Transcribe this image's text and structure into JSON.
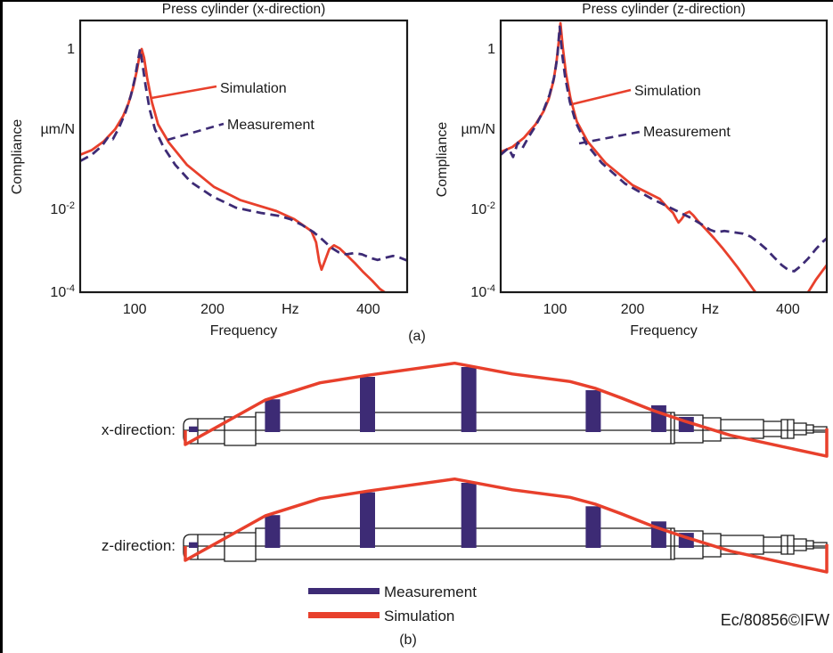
{
  "figure": {
    "panel_a_label": "(a)",
    "panel_b_label": "(b)",
    "watermark": "Ec/80856©IFW"
  },
  "colors": {
    "simulation": "#e8402c",
    "measurement": "#3d2b75",
    "axis": "#1a1a1a"
  },
  "chart_data": [
    {
      "type": "line",
      "title": "Press cylinder (x-direction)",
      "xlabel": "Frequency",
      "x_unit": "Hz",
      "ylabel": "Compliance",
      "y_unit": "µm/N",
      "x_scale": "linear",
      "y_scale": "log",
      "xlim": [
        30,
        450
      ],
      "ylim": [
        0.0001,
        2
      ],
      "x_ticks": [
        {
          "value": 100,
          "label": "100"
        },
        {
          "value": 200,
          "label": "200"
        },
        {
          "value": 300,
          "label": "Hz"
        },
        {
          "value": 400,
          "label": "400"
        }
      ],
      "y_ticks": [
        {
          "value": 1,
          "base": "1",
          "exp": ""
        },
        {
          "value": 0.1,
          "base": "µm/N",
          "exp": ""
        },
        {
          "value": 0.01,
          "base": "10",
          "exp": "-2"
        },
        {
          "value": 0.0001,
          "base": "10",
          "exp": "-4"
        }
      ],
      "series": [
        {
          "name": "Simulation",
          "style": "solid",
          "color_key": "simulation",
          "points": [
            [
              30,
              0.048
            ],
            [
              45,
              0.055
            ],
            [
              60,
              0.07
            ],
            [
              75,
              0.1
            ],
            [
              85,
              0.145
            ],
            [
              92,
              0.21
            ],
            [
              98,
              0.33
            ],
            [
              103,
              0.55
            ],
            [
              106,
              0.8
            ],
            [
              109,
              1.0
            ],
            [
              112,
              0.78
            ],
            [
              116,
              0.44
            ],
            [
              122,
              0.22
            ],
            [
              130,
              0.115
            ],
            [
              144,
              0.068
            ],
            [
              167,
              0.036
            ],
            [
              202,
              0.019
            ],
            [
              236,
              0.013
            ],
            [
              282,
              0.0091
            ],
            [
              305,
              0.0058
            ],
            [
              327,
              0.003
            ],
            [
              333,
              0.0016
            ],
            [
              337,
              0.00055
            ],
            [
              340,
              0.00035
            ],
            [
              344,
              0.00055
            ],
            [
              350,
              0.0011
            ],
            [
              356,
              0.00135
            ],
            [
              363,
              0.00115
            ],
            [
              372,
              0.0008
            ],
            [
              383,
              0.0005
            ],
            [
              394,
              0.0003
            ],
            [
              405,
              0.00019
            ],
            [
              415,
              0.00012
            ],
            [
              421,
              0.0001
            ]
          ]
        },
        {
          "name": "Measurement",
          "style": "dashed",
          "color_key": "measurement",
          "points": [
            [
              30,
              0.04
            ],
            [
              45,
              0.048
            ],
            [
              58,
              0.062
            ],
            [
              66,
              0.08
            ],
            [
              72,
              0.075
            ],
            [
              80,
              0.105
            ],
            [
              88,
              0.16
            ],
            [
              95,
              0.26
            ],
            [
              100,
              0.42
            ],
            [
              104,
              0.7
            ],
            [
              107,
              1.0
            ],
            [
              110,
              0.65
            ],
            [
              114,
              0.35
            ],
            [
              119,
              0.18
            ],
            [
              126,
              0.1
            ],
            [
              137,
              0.06
            ],
            [
              152,
              0.036
            ],
            [
              172,
              0.022
            ],
            [
              200,
              0.0145
            ],
            [
              230,
              0.0105
            ],
            [
              262,
              0.0082
            ],
            [
              285,
              0.007
            ],
            [
              300,
              0.0058
            ],
            [
              315,
              0.0042
            ],
            [
              330,
              0.0028
            ],
            [
              342,
              0.0018
            ],
            [
              352,
              0.0012
            ],
            [
              362,
              0.00092
            ],
            [
              372,
              0.00082
            ],
            [
              382,
              0.00088
            ],
            [
              392,
              0.00082
            ],
            [
              402,
              0.00068
            ],
            [
              412,
              0.0006
            ],
            [
              422,
              0.00068
            ],
            [
              432,
              0.00075
            ],
            [
              441,
              0.00068
            ],
            [
              450,
              0.00058
            ]
          ]
        }
      ]
    },
    {
      "type": "line",
      "title": "Press cylinder (z-direction)",
      "xlabel": "Frequency",
      "x_unit": "Hz",
      "ylabel": "Compliance",
      "y_unit": "µm/N",
      "x_scale": "linear",
      "y_scale": "log",
      "xlim": [
        30,
        450
      ],
      "ylim": [
        0.0001,
        2.2
      ],
      "x_ticks": [
        {
          "value": 100,
          "label": "100"
        },
        {
          "value": 200,
          "label": "200"
        },
        {
          "value": 300,
          "label": "Hz"
        },
        {
          "value": 400,
          "label": "400"
        }
      ],
      "y_ticks": [
        {
          "value": 1,
          "base": "1",
          "exp": ""
        },
        {
          "value": 0.1,
          "base": "µm/N",
          "exp": ""
        },
        {
          "value": 0.01,
          "base": "10",
          "exp": "-2"
        },
        {
          "value": 0.0001,
          "base": "10",
          "exp": "-4"
        }
      ],
      "series": [
        {
          "name": "Simulation",
          "style": "solid",
          "color_key": "simulation",
          "points": [
            [
              30,
              0.052
            ],
            [
              45,
              0.06
            ],
            [
              60,
              0.078
            ],
            [
              75,
              0.115
            ],
            [
              85,
              0.165
            ],
            [
              92,
              0.24
            ],
            [
              98,
              0.4
            ],
            [
              102,
              0.7
            ],
            [
              105,
              1.3
            ],
            [
              107,
              2.1
            ],
            [
              110,
              1.05
            ],
            [
              114,
              0.5
            ],
            [
              120,
              0.24
            ],
            [
              128,
              0.125
            ],
            [
              142,
              0.07
            ],
            [
              165,
              0.038
            ],
            [
              200,
              0.02
            ],
            [
              235,
              0.0135
            ],
            [
              245,
              0.0105
            ],
            [
              252,
              0.0082
            ],
            [
              256,
              0.006
            ],
            [
              259,
              0.0048
            ],
            [
              263,
              0.0058
            ],
            [
              268,
              0.008
            ],
            [
              273,
              0.0088
            ],
            [
              278,
              0.0072
            ],
            [
              285,
              0.005
            ],
            [
              295,
              0.0032
            ],
            [
              305,
              0.002
            ],
            [
              315,
              0.0012
            ],
            [
              325,
              0.0007
            ],
            [
              335,
              0.0004
            ],
            [
              345,
              0.00022
            ],
            [
              355,
              0.00012
            ],
            [
              362,
              8e-05
            ],
            [
              380,
              4e-05
            ],
            [
              395,
              4e-05
            ],
            [
              408,
              6e-05
            ],
            [
              418,
              9e-05
            ],
            [
              426,
              0.0001
            ],
            [
              436,
              0.0002
            ],
            [
              444,
              0.00032
            ],
            [
              450,
              0.00045
            ]
          ]
        },
        {
          "name": "Measurement",
          "style": "dashed",
          "color_key": "measurement",
          "points": [
            [
              30,
              0.048
            ],
            [
              40,
              0.058
            ],
            [
              46,
              0.045
            ],
            [
              52,
              0.068
            ],
            [
              58,
              0.058
            ],
            [
              66,
              0.08
            ],
            [
              75,
              0.11
            ],
            [
              85,
              0.17
            ],
            [
              93,
              0.27
            ],
            [
              99,
              0.45
            ],
            [
              103,
              0.8
            ],
            [
              106,
              1.9
            ],
            [
              109,
              0.9
            ],
            [
              113,
              0.45
            ],
            [
              119,
              0.22
            ],
            [
              127,
              0.12
            ],
            [
              140,
              0.066
            ],
            [
              160,
              0.038
            ],
            [
              190,
              0.021
            ],
            [
              225,
              0.0135
            ],
            [
              255,
              0.0095
            ],
            [
              275,
              0.0062
            ],
            [
              290,
              0.0042
            ],
            [
              300,
              0.0032
            ],
            [
              308,
              0.0028
            ],
            [
              318,
              0.003
            ],
            [
              330,
              0.0028
            ],
            [
              342,
              0.0026
            ],
            [
              352,
              0.0022
            ],
            [
              362,
              0.0016
            ],
            [
              372,
              0.0011
            ],
            [
              382,
              0.0007
            ],
            [
              392,
              0.00045
            ],
            [
              400,
              0.00035
            ],
            [
              408,
              0.00032
            ],
            [
              416,
              0.00042
            ],
            [
              426,
              0.00065
            ],
            [
              436,
              0.0011
            ],
            [
              444,
              0.0016
            ],
            [
              450,
              0.002
            ]
          ]
        }
      ]
    }
  ],
  "mode_shapes": {
    "rows": [
      {
        "label": "x-direction:",
        "bars": [
          {
            "pos": 0.0125,
            "amp": 0.06
          },
          {
            "pos": 0.136,
            "amp": 0.49
          },
          {
            "pos": 0.284,
            "amp": 0.845
          },
          {
            "pos": 0.442,
            "amp": 1.0
          },
          {
            "pos": 0.636,
            "amp": 0.634
          },
          {
            "pos": 0.738,
            "amp": 0.394
          },
          {
            "pos": 0.781,
            "amp": 0.211
          }
        ],
        "sim_line": [
          [
            0,
            0
          ],
          [
            0,
            -0.225
          ],
          [
            0.125,
            0.48
          ],
          [
            0.21,
            0.75
          ],
          [
            0.285,
            0.87
          ],
          [
            0.42,
            1.06
          ],
          [
            0.51,
            0.89
          ],
          [
            0.6,
            0.77
          ],
          [
            0.64,
            0.66
          ],
          [
            0.68,
            0.51
          ],
          [
            0.73,
            0.31
          ],
          [
            0.78,
            0.14
          ],
          [
            0.85,
            -0.08
          ],
          [
            1.0,
            -0.41
          ],
          [
            1.0,
            0.03
          ]
        ]
      },
      {
        "label": "z-direction:",
        "bars": [
          {
            "pos": 0.0125,
            "amp": 0.06
          },
          {
            "pos": 0.136,
            "amp": 0.49
          },
          {
            "pos": 0.284,
            "amp": 0.85
          },
          {
            "pos": 0.442,
            "amp": 1.0
          },
          {
            "pos": 0.636,
            "amp": 0.63
          },
          {
            "pos": 0.738,
            "amp": 0.39
          },
          {
            "pos": 0.781,
            "amp": 0.21
          }
        ],
        "sim_line": [
          [
            0,
            0
          ],
          [
            0,
            -0.225
          ],
          [
            0.125,
            0.48
          ],
          [
            0.21,
            0.75
          ],
          [
            0.285,
            0.87
          ],
          [
            0.42,
            1.06
          ],
          [
            0.51,
            0.89
          ],
          [
            0.6,
            0.77
          ],
          [
            0.64,
            0.66
          ],
          [
            0.68,
            0.51
          ],
          [
            0.73,
            0.31
          ],
          [
            0.78,
            0.14
          ],
          [
            0.85,
            -0.08
          ],
          [
            1.0,
            -0.41
          ],
          [
            1.0,
            0.03
          ]
        ]
      }
    ],
    "legend": [
      {
        "label": "Measurement",
        "color_key": "measurement"
      },
      {
        "label": "Simulation",
        "color_key": "simulation"
      }
    ]
  }
}
